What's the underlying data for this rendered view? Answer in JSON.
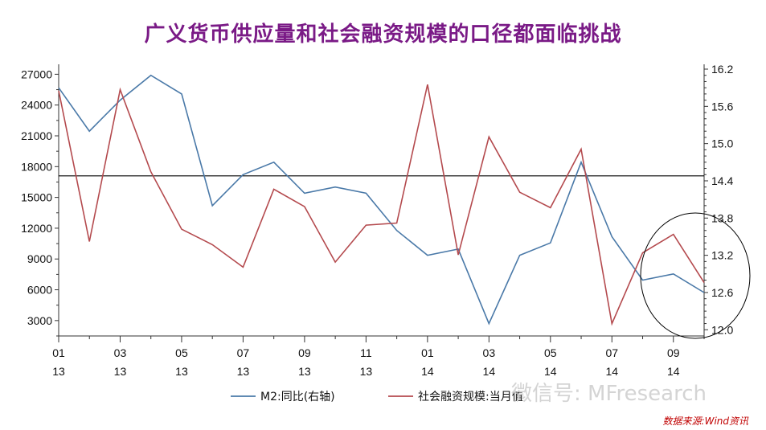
{
  "title": "广义货币供应量和社会融资规模的口径都面临挑战",
  "source": "数据来源:Wind资讯",
  "watermark": "微信号: MFresearch",
  "colors": {
    "title": "#7a1a86",
    "m2": "#4a79a8",
    "tsf": "#b44a4e",
    "source": "#c00000",
    "axis": "#333333",
    "reference_line": "#000000",
    "highlight_circle": "#000000"
  },
  "chart_data": {
    "type": "line",
    "x": [
      "2013-01",
      "2013-02",
      "2013-03",
      "2013-04",
      "2013-05",
      "2013-06",
      "2013-07",
      "2013-08",
      "2013-09",
      "2013-10",
      "2013-11",
      "2013-12",
      "2014-01",
      "2014-02",
      "2014-03",
      "2014-04",
      "2014-05",
      "2014-06",
      "2014-07",
      "2014-08",
      "2014-09",
      "2014-10"
    ],
    "x_tick_labels": [
      {
        "month": "01",
        "year": "13"
      },
      {
        "month": "03",
        "year": "13"
      },
      {
        "month": "05",
        "year": "13"
      },
      {
        "month": "07",
        "year": "13"
      },
      {
        "month": "09",
        "year": "13"
      },
      {
        "month": "11",
        "year": "13"
      },
      {
        "month": "01",
        "year": "14"
      },
      {
        "month": "03",
        "year": "14"
      },
      {
        "month": "05",
        "year": "14"
      },
      {
        "month": "07",
        "year": "14"
      },
      {
        "month": "09",
        "year": "14"
      }
    ],
    "y_left": {
      "ticks": [
        3000,
        6000,
        9000,
        12000,
        15000,
        18000,
        21000,
        24000,
        27000
      ],
      "range": [
        1500,
        27500
      ]
    },
    "y_right": {
      "ticks": [
        "12.0",
        "12.6",
        "13.2",
        "13.8",
        "14.4",
        "15.0",
        "15.6",
        "16.2"
      ],
      "range": [
        11.9,
        16.2
      ]
    },
    "series": [
      {
        "name": "M2:同比(右轴)",
        "axis": "right",
        "values": [
          15.9,
          15.2,
          15.7,
          16.1,
          15.8,
          14.0,
          14.5,
          14.7,
          14.2,
          14.3,
          14.2,
          13.6,
          13.2,
          13.3,
          12.1,
          13.2,
          13.4,
          14.7,
          13.5,
          12.8,
          12.9,
          12.6
        ]
      },
      {
        "name": "社会融资规模:当月值",
        "axis": "left",
        "values": [
          25400,
          10700,
          25500,
          17500,
          11900,
          10400,
          8200,
          15800,
          14100,
          8700,
          12300,
          12500,
          26000,
          9400,
          20900,
          15500,
          14000,
          19700,
          2700,
          9600,
          11400,
          6700
        ]
      }
    ],
    "reference_line": {
      "axis": "left",
      "value": 17100
    },
    "annotations": [
      "circle highlighting 2014-08 to 2014-10"
    ],
    "legend_position": "bottom"
  }
}
